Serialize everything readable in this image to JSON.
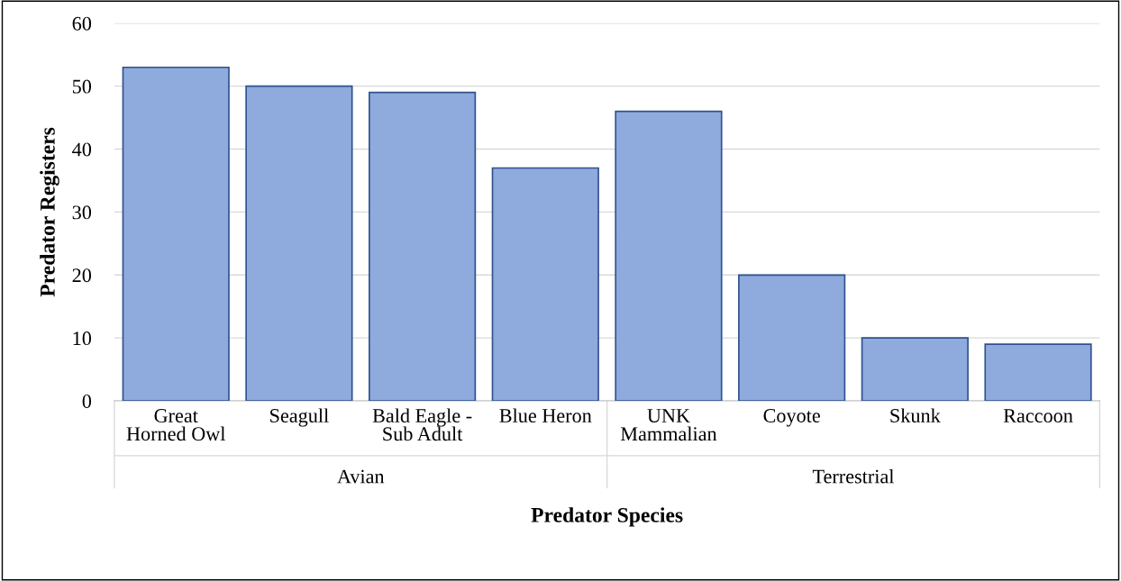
{
  "chart_data": {
    "type": "bar",
    "xlabel": "Predator Species",
    "ylabel": "Predator Registers",
    "categories": [
      "Great Horned Owl",
      "Seagull",
      "Bald Eagle - Sub Adult",
      "Blue Heron",
      "UNK Mammalian",
      "Coyote",
      "Skunk",
      "Raccoon"
    ],
    "values": [
      53,
      50,
      49,
      37,
      46,
      20,
      10,
      9
    ],
    "color": "#8faadc",
    "ylim": [
      0,
      60
    ],
    "yticks": [
      0,
      10,
      20,
      30,
      40,
      50,
      60
    ],
    "grid": "y",
    "annotations": [
      "Avian",
      "Terrestrial"
    ]
  }
}
